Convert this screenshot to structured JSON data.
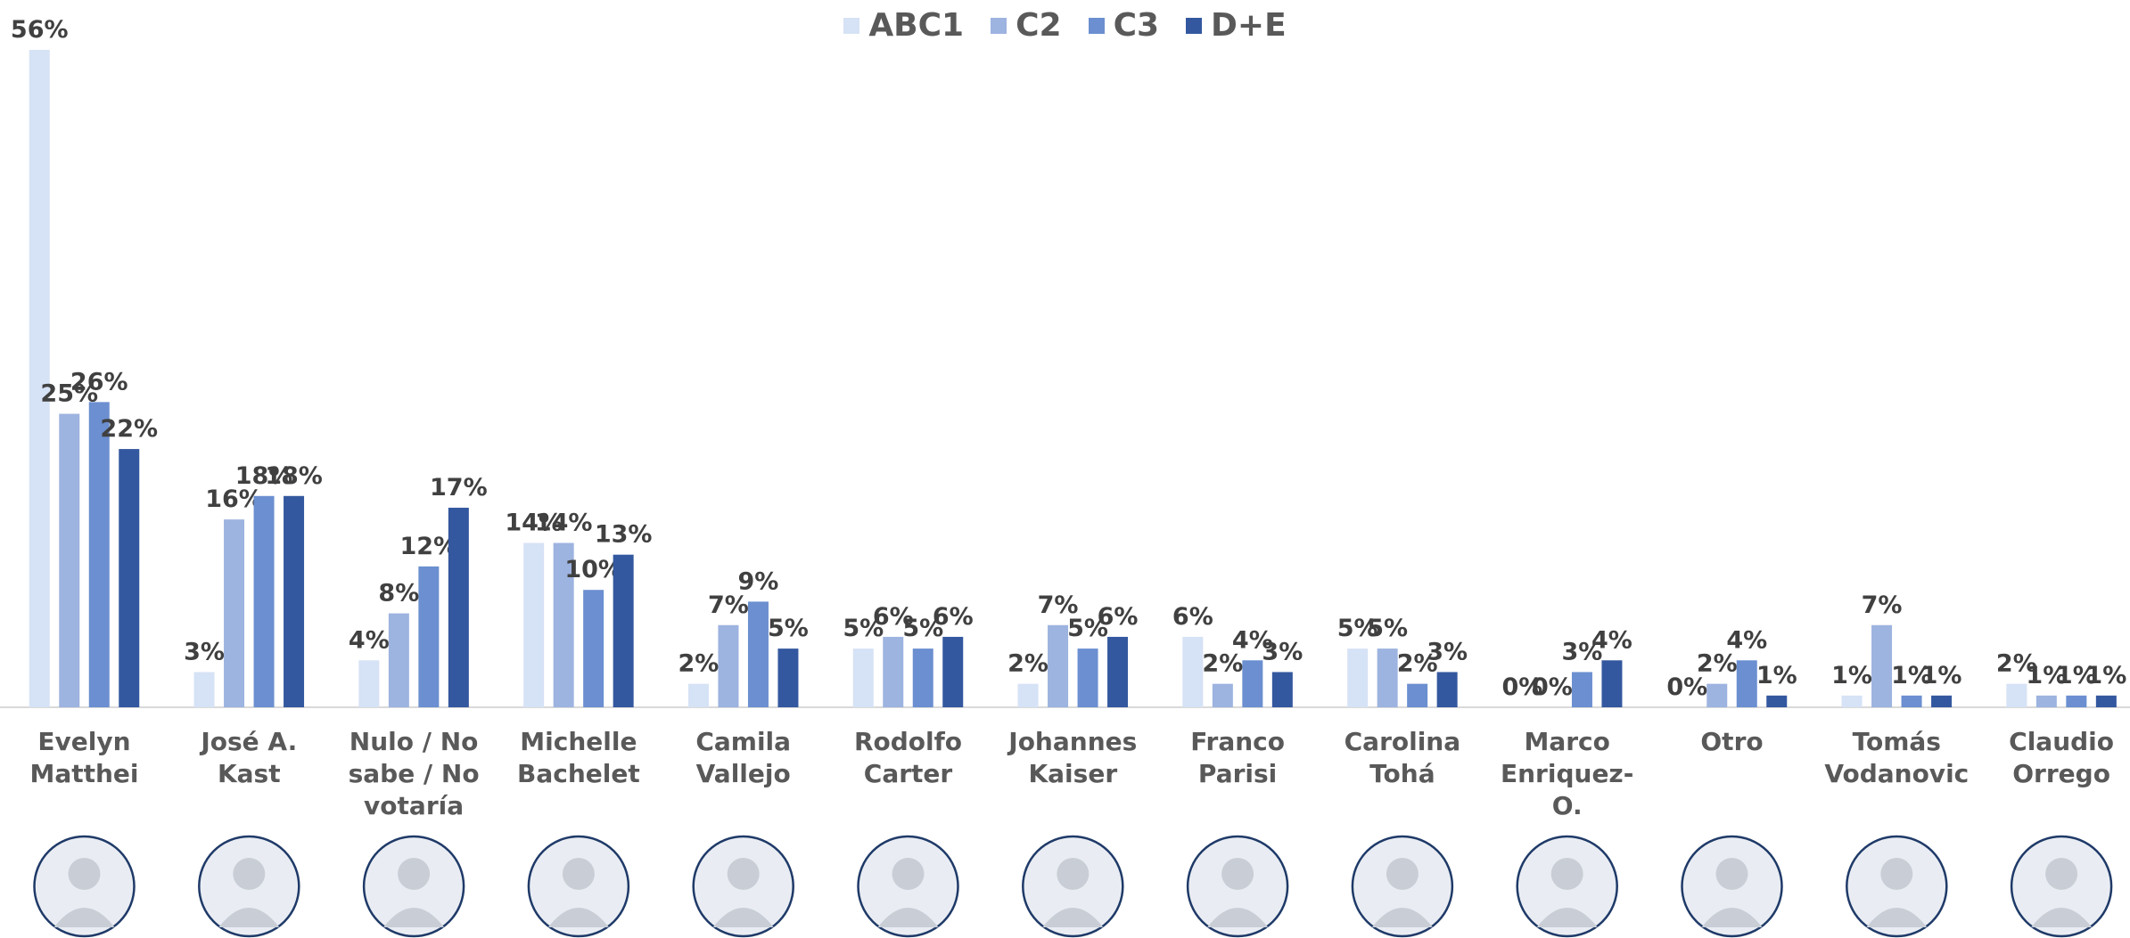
{
  "chart_data": {
    "type": "bar",
    "categories": [
      "Evelyn Matthei",
      "José A. Kast",
      "Nulo / No sabe / No votaría",
      "Michelle Bachelet",
      "Camila Vallejo",
      "Rodolfo Carter",
      "Johannes Kaiser",
      "Franco Parisi",
      "Carolina Tohá",
      "Marco Enriquez-O.",
      "Otro",
      "Tomás Vodanovic",
      "Claudio Orrego"
    ],
    "series": [
      {
        "name": "ABC1",
        "color": "#d6e2f5",
        "values": [
          56,
          3,
          4,
          14,
          2,
          5,
          2,
          6,
          5,
          0,
          0,
          1,
          2
        ],
        "value_labels": [
          "56%",
          "3%",
          "4%",
          "14%",
          "2%",
          "5%",
          "2%",
          "6%",
          "5%",
          "0%",
          "0%",
          "1%",
          "2%"
        ]
      },
      {
        "name": "C2",
        "color": "#9db3e0",
        "values": [
          25,
          16,
          8,
          14,
          7,
          6,
          7,
          2,
          5,
          0,
          2,
          7,
          1
        ],
        "value_labels": [
          "25%",
          "16%",
          "8%",
          "14%",
          "7%",
          "6%",
          "7%",
          "2%",
          "5%",
          "0%",
          "2%",
          "7%",
          "1%"
        ]
      },
      {
        "name": "C3",
        "color": "#6b8fd0",
        "values": [
          26,
          18,
          12,
          10,
          9,
          5,
          5,
          4,
          2,
          3,
          4,
          1,
          1
        ],
        "value_labels": [
          "26%",
          "18%",
          "12%",
          "10%",
          "9%",
          "5%",
          "5%",
          "4%",
          "2%",
          "3%",
          "4%",
          "1%",
          "1%"
        ]
      },
      {
        "name": "D+E",
        "color": "#34589f",
        "values": [
          22,
          18,
          17,
          13,
          5,
          6,
          6,
          3,
          3,
          4,
          1,
          1,
          1
        ],
        "value_labels": [
          "22%",
          "18%",
          "17%",
          "13%",
          "5%",
          "6%",
          "6%",
          "3%",
          "3%",
          "4%",
          "1%",
          "1%",
          "1%"
        ]
      }
    ],
    "legend": "top"
  }
}
